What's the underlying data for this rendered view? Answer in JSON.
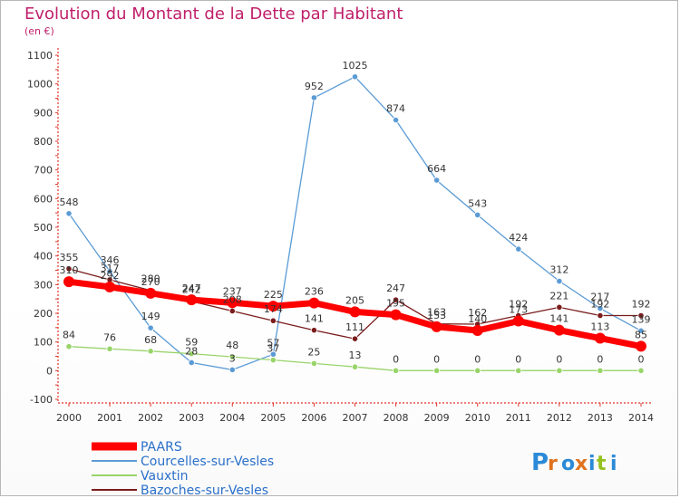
{
  "header": {
    "title": "Evolution du Montant de la Dette par Habitant",
    "subtitle": "(en €)"
  },
  "logo": {
    "text": "Proxiti",
    "colors": [
      "#2a8ad8",
      "#e0721e",
      "#2a8ad8",
      "#e0721e",
      "#2a8ad8",
      "#95c11f",
      "#2a8ad8"
    ]
  },
  "chart_data": {
    "type": "line",
    "title": "Evolution du Montant de la Dette par Habitant",
    "ylabel": "(en €)",
    "xlabel": "",
    "ylim": [
      -100,
      1100
    ],
    "yticks": [
      -100,
      0,
      100,
      200,
      300,
      400,
      500,
      600,
      700,
      800,
      900,
      1000,
      1100
    ],
    "grid": false,
    "legend_position": "bottom-left",
    "x": [
      "2000",
      "2001",
      "2002",
      "2003",
      "2004",
      "2005",
      "2006",
      "2007",
      "2008",
      "2009",
      "2010",
      "2011",
      "2012",
      "2013",
      "2014"
    ],
    "series": [
      {
        "name": "Courcelles-sur-Vesles",
        "color": "#5b9bd5",
        "values": [
          548,
          346,
          149,
          28,
          3,
          57,
          952,
          1025,
          874,
          664,
          543,
          424,
          312,
          217,
          139
        ]
      },
      {
        "name": "Vauxtin",
        "color": "#99d46a",
        "values": [
          84,
          76,
          68,
          59,
          48,
          37,
          25,
          13,
          0,
          0,
          0,
          0,
          0,
          0,
          0
        ]
      },
      {
        "name": "Bazoches-sur-Vesles",
        "color": "#7b1c1c",
        "values": [
          355,
          317,
          280,
          242,
          208,
          174,
          141,
          111,
          247,
          163,
          162,
          192,
          221,
          192,
          192
        ]
      },
      {
        "name": "PAARS",
        "color": "#ff0000",
        "values": [
          310,
          292,
          270,
          247,
          237,
          225,
          236,
          205,
          195,
          153,
          140,
          173,
          141,
          113,
          85
        ]
      }
    ]
  }
}
